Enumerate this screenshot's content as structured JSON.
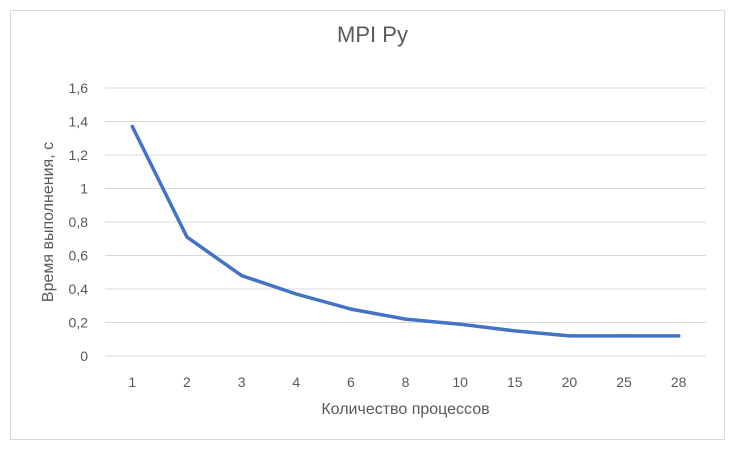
{
  "chart_data": {
    "type": "line",
    "title": "MPI Py",
    "xlabel": "Количество процессов",
    "ylabel": "Время выполнения, с",
    "categories": [
      "1",
      "2",
      "3",
      "4",
      "6",
      "8",
      "10",
      "15",
      "20",
      "25",
      "28"
    ],
    "series": [
      {
        "values": [
          1.37,
          0.71,
          0.48,
          0.37,
          0.28,
          0.22,
          0.19,
          0.15,
          0.12,
          0.12,
          0.12
        ]
      }
    ],
    "ylim": [
      0,
      1.6
    ],
    "yticks": [
      "0",
      "0,2",
      "0,4",
      "0,6",
      "0,8",
      "1",
      "1,2",
      "1,4",
      "1,6"
    ],
    "grid": true,
    "legend": "none",
    "colors": {
      "line": "#4472c4",
      "grid": "#d9d9d9",
      "text": "#595959"
    }
  }
}
